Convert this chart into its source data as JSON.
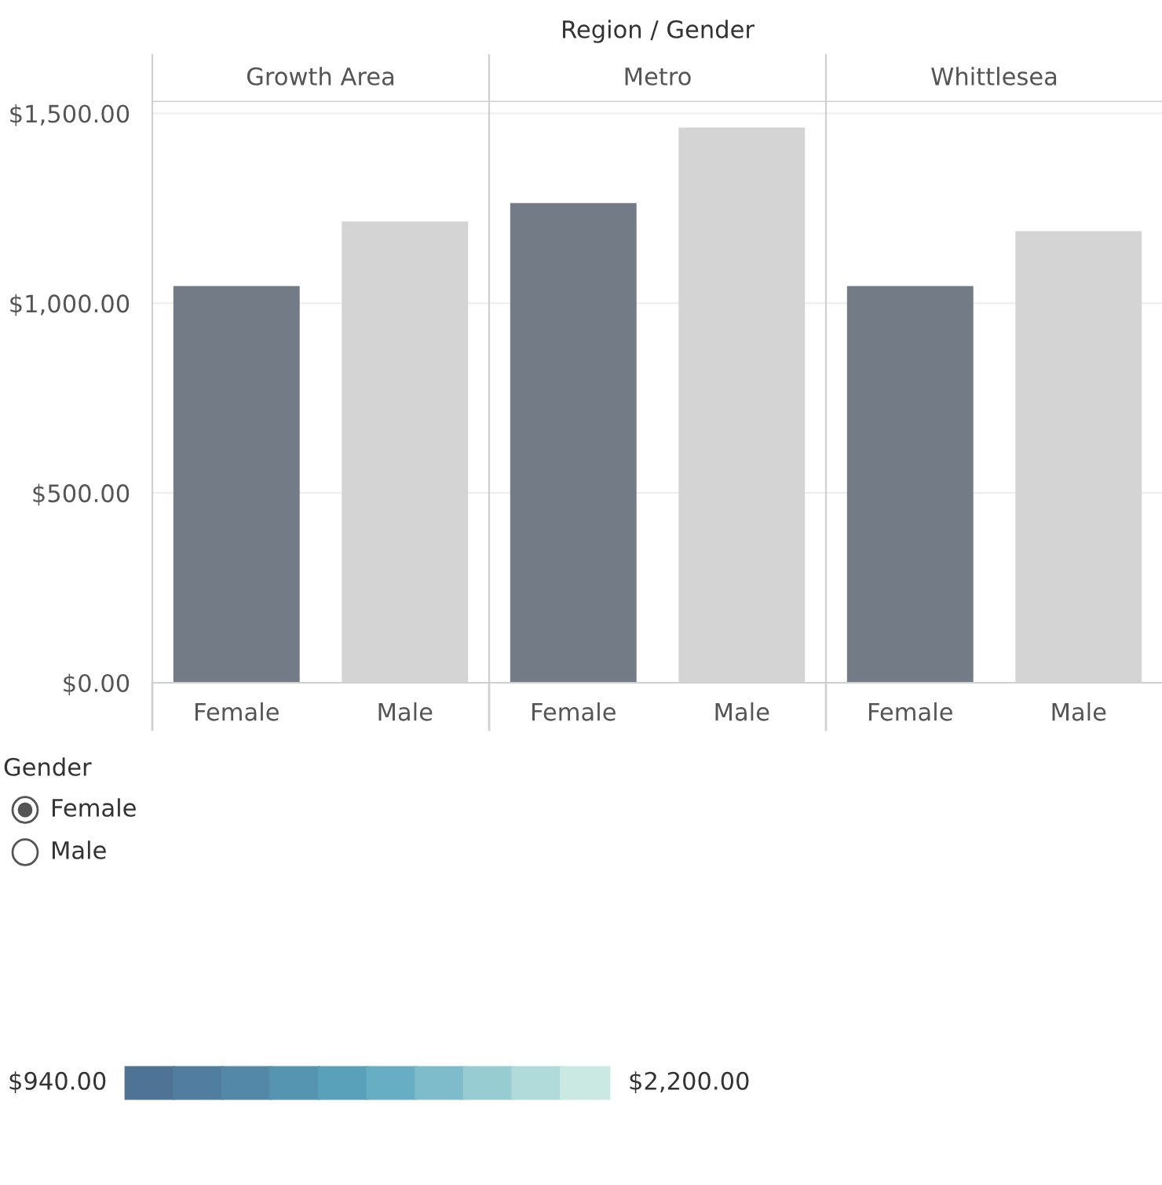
{
  "chart_data": [
    {
      "type": "bar",
      "title": "Growth Area",
      "annotations": [
        "Region / Gender"
      ],
      "categories": [
        "Female",
        "Male"
      ],
      "values": [
        1045,
        1215
      ],
      "colors": [
        "#737b87",
        "#d4d4d4"
      ],
      "ylim": [
        0,
        1530
      ],
      "yticks": [
        {
          "value": 0,
          "label": "$0.00"
        },
        {
          "value": 500,
          "label": "$500.00"
        },
        {
          "value": 1000,
          "label": "$1,000.00"
        },
        {
          "value": 1500,
          "label": "$1,500.00"
        }
      ],
      "grid": "y"
    },
    {
      "type": "bar",
      "title": "Metro",
      "categories": [
        "Female",
        "Male"
      ],
      "values": [
        1264,
        1463
      ],
      "colors": [
        "#737b87",
        "#d4d4d4"
      ],
      "ylim": [
        0,
        1530
      ],
      "yticks": [
        {
          "value": 0,
          "label": null
        },
        {
          "value": 500,
          "label": null
        },
        {
          "value": 1000,
          "label": null
        },
        {
          "value": 1500,
          "label": null
        }
      ],
      "grid": "y",
      "tick_labels": "x"
    },
    {
      "type": "bar",
      "title": "Whittlesea",
      "categories": [
        "Female",
        "Male"
      ],
      "values": [
        1045,
        1190
      ],
      "colors": [
        "#737b87",
        "#d4d4d4"
      ],
      "ylim": [
        0,
        1530
      ],
      "yticks": [
        {
          "value": 0,
          "label": null
        },
        {
          "value": 500,
          "label": null
        },
        {
          "value": 1000,
          "label": null
        },
        {
          "value": 1500,
          "label": null
        }
      ],
      "grid": "y",
      "tick_labels": "x"
    },
    {
      "type": "other",
      "title": "Gender",
      "annotations": [
        "Female",
        "Male",
        "$940.00",
        "$2,200.00"
      ]
    }
  ]
}
